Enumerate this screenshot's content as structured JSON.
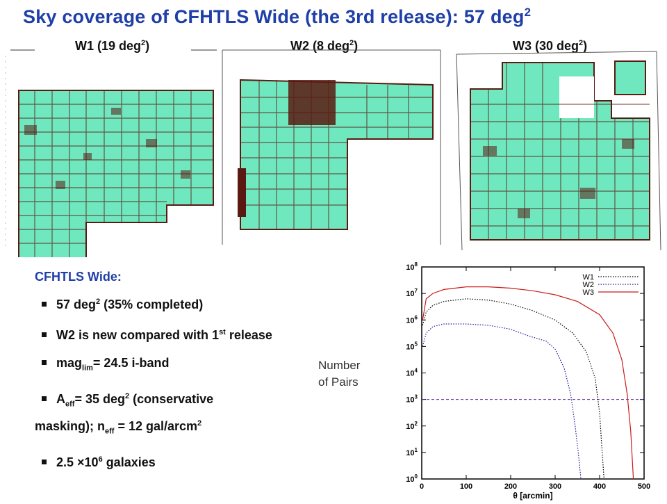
{
  "title": {
    "main": "Sky coverage of CFHTLS Wide (the 3rd release):  57 deg",
    "sup": "2"
  },
  "fields": [
    {
      "name": "W1",
      "label_pre": "W1 (19 deg",
      "label_sup": "2",
      "label_post": ")"
    },
    {
      "name": "W2",
      "label_pre": "W2 (8 deg",
      "label_sup": "2",
      "label_post": ")"
    },
    {
      "name": "W3",
      "label_pre": "W3 (30 deg",
      "label_sup": "2",
      "label_post": ")"
    }
  ],
  "colors": {
    "title": "#1f3fa8",
    "coverage": "#6fe8c0",
    "masked": "#5a1a12",
    "w1_line": "#000000",
    "w2_line": "#1a1aa0",
    "w3_line": "#cc1a1a",
    "threshold_line": "#5a2aa0"
  },
  "info": {
    "heading": "CFHTLS Wide:",
    "b1_pre": "57 deg",
    "b1_sup": "2",
    "b1_post": "  (35% completed)",
    "b2_pre": "W2 is new compared with 1",
    "b2_sup": "st",
    "b2_post": " release",
    "b3_pre": "mag",
    "b3_sub": "lim",
    "b3_post": "= 24.5 i-band",
    "b4_pre": "A",
    "b4_sub": "eff",
    "b4_mid": "= 35 deg",
    "b4_sup": "2",
    "b4_post": " (conservative",
    "b4_line2_pre": "masking); n",
    "b4_line2_sub": "eff",
    "b4_line2_mid": " = 12 gal/arcm",
    "b4_line2_sup": "2",
    "b5_pre": "2.5 ×10",
    "b5_sup": "6",
    "b5_post": " galaxies"
  },
  "pairs_label": {
    "line1": "Number",
    "line2": "of Pairs"
  },
  "chart_data": {
    "type": "line",
    "xlabel": "θ [arcmin]",
    "ylabel": "",
    "xlim": [
      0,
      500
    ],
    "ylim_log10": [
      0,
      8
    ],
    "xticks": [
      "0",
      "100",
      "200",
      "300",
      "400",
      "500"
    ],
    "yticks_base": "10",
    "yticks_exp": [
      "0",
      "1",
      "2",
      "3",
      "4",
      "5",
      "6",
      "7",
      "8"
    ],
    "legend_position": "top-right",
    "series": [
      {
        "name": "W1",
        "style": "dotted",
        "x": [
          2,
          10,
          25,
          50,
          100,
          150,
          200,
          250,
          300,
          340,
          370,
          390,
          400,
          405,
          410
        ],
        "log10_y": [
          5.8,
          6.3,
          6.55,
          6.7,
          6.8,
          6.75,
          6.6,
          6.35,
          6.0,
          5.5,
          4.8,
          3.8,
          2.5,
          1.2,
          0.0
        ]
      },
      {
        "name": "W2",
        "style": "dotted",
        "x": [
          2,
          10,
          25,
          50,
          100,
          150,
          200,
          240,
          280,
          300,
          320,
          335,
          345,
          352,
          358
        ],
        "log10_y": [
          5.0,
          5.5,
          5.75,
          5.85,
          5.85,
          5.8,
          5.65,
          5.4,
          5.2,
          4.9,
          4.2,
          3.2,
          2.0,
          1.0,
          0.0
        ]
      },
      {
        "name": "W3",
        "style": "solid",
        "x": [
          2,
          10,
          25,
          50,
          100,
          150,
          200,
          250,
          300,
          350,
          400,
          430,
          450,
          462,
          470,
          476
        ],
        "log10_y": [
          6.0,
          6.8,
          7.0,
          7.15,
          7.25,
          7.25,
          7.2,
          7.1,
          6.95,
          6.7,
          6.2,
          5.5,
          4.5,
          3.2,
          1.8,
          0.0
        ]
      }
    ],
    "threshold": {
      "log10_y": 3,
      "style": "dashed"
    }
  }
}
